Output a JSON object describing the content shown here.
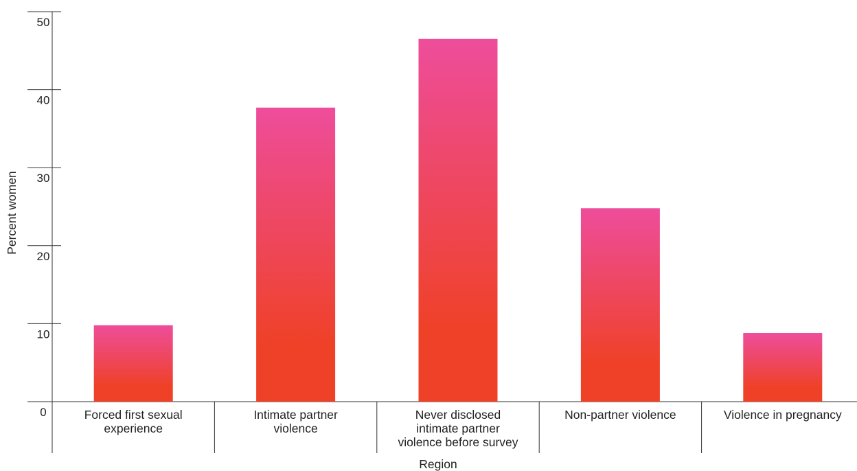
{
  "chart_data": {
    "type": "bar",
    "title": "",
    "xlabel": "Region",
    "ylabel": "Percent women",
    "ylim": [
      0,
      50
    ],
    "yticks": [
      0,
      10,
      20,
      30,
      40,
      50
    ],
    "categories": [
      [
        "Forced first sexual",
        "experience"
      ],
      [
        "Intimate partner",
        "violence"
      ],
      [
        "Never disclosed",
        "intimate partner",
        "violence before survey"
      ],
      [
        "Non-partner violence"
      ],
      [
        "Violence in pregnancy"
      ]
    ],
    "values": [
      9.8,
      37.7,
      46.5,
      24.8,
      8.8
    ],
    "grid": false,
    "legend": "none",
    "colors": {
      "bar_top": "#ee4d9b",
      "bar_bottom": "#ef4128",
      "axis": "#333333",
      "text": "#222222"
    }
  }
}
